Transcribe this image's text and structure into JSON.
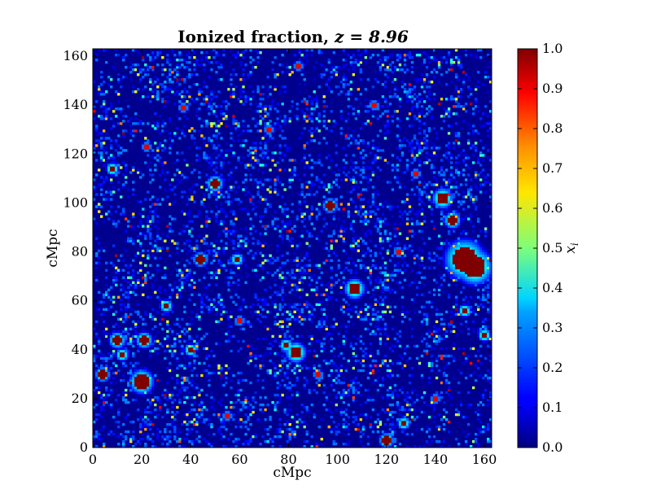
{
  "chart_data": {
    "type": "heatmap",
    "title_prefix": "Ionized fraction, ",
    "title_math": "z = 8.96",
    "redshift": 8.96,
    "xlabel": "cMpc",
    "ylabel": "cMpc",
    "xlim": [
      0,
      163
    ],
    "ylim": [
      0,
      163
    ],
    "xticks": [
      "0",
      "20",
      "40",
      "60",
      "80",
      "100",
      "120",
      "140",
      "160"
    ],
    "yticks": [
      "0",
      "20",
      "40",
      "60",
      "80",
      "100",
      "120",
      "140",
      "160"
    ],
    "colorbar": {
      "label": "x_i",
      "label_base": "x",
      "label_sub": "i",
      "colormap": "jet",
      "range": [
        0.0,
        1.0
      ],
      "ticks": [
        "0.0",
        "0.1",
        "0.2",
        "0.3",
        "0.4",
        "0.5",
        "0.6",
        "0.7",
        "0.8",
        "0.9",
        "1.0"
      ]
    },
    "background_level": 0.0,
    "ionized_bubbles": [
      {
        "x": 152,
        "y": 77,
        "r": 5,
        "xi": 1.0
      },
      {
        "x": 156,
        "y": 74,
        "r": 4.5,
        "xi": 1.0
      },
      {
        "x": 143,
        "y": 102,
        "r": 2.5,
        "xi": 1.0
      },
      {
        "x": 147,
        "y": 93,
        "r": 2,
        "xi": 1.0
      },
      {
        "x": 20,
        "y": 27,
        "r": 3,
        "xi": 1.0
      },
      {
        "x": 21,
        "y": 44,
        "r": 2,
        "xi": 1.0
      },
      {
        "x": 10,
        "y": 44,
        "r": 2,
        "xi": 1.0
      },
      {
        "x": 12,
        "y": 38,
        "r": 1.5,
        "xi": 1.0
      },
      {
        "x": 83,
        "y": 39,
        "r": 2.5,
        "xi": 1.0
      },
      {
        "x": 79,
        "y": 42,
        "r": 1.5,
        "xi": 1.0
      },
      {
        "x": 107,
        "y": 65,
        "r": 2.5,
        "xi": 1.0
      },
      {
        "x": 50,
        "y": 108,
        "r": 2,
        "xi": 1.0
      },
      {
        "x": 97,
        "y": 99,
        "r": 1.8,
        "xi": 1.0
      },
      {
        "x": 8,
        "y": 114,
        "r": 1.5,
        "xi": 1.0
      },
      {
        "x": 44,
        "y": 77,
        "r": 1.8,
        "xi": 1.0
      },
      {
        "x": 59,
        "y": 77,
        "r": 1.5,
        "xi": 1.0
      },
      {
        "x": 4,
        "y": 30,
        "r": 1.8,
        "xi": 1.0
      },
      {
        "x": 40,
        "y": 40,
        "r": 1.5,
        "xi": 1.0
      },
      {
        "x": 30,
        "y": 58,
        "r": 1.5,
        "xi": 1.0
      },
      {
        "x": 120,
        "y": 3,
        "r": 1.8,
        "xi": 1.0
      },
      {
        "x": 127,
        "y": 10,
        "r": 1.5,
        "xi": 1.0
      },
      {
        "x": 152,
        "y": 56,
        "r": 1.5,
        "xi": 1.0
      },
      {
        "x": 160,
        "y": 46,
        "r": 1.5,
        "xi": 1.0
      },
      {
        "x": 132,
        "y": 112,
        "r": 1.2,
        "xi": 0.9
      },
      {
        "x": 37,
        "y": 139,
        "r": 1.2,
        "xi": 0.9
      },
      {
        "x": 84,
        "y": 156,
        "r": 1.2,
        "xi": 0.9
      },
      {
        "x": 60,
        "y": 52,
        "r": 1.2,
        "xi": 0.9
      },
      {
        "x": 125,
        "y": 80,
        "r": 1.2,
        "xi": 0.9
      },
      {
        "x": 92,
        "y": 30,
        "r": 1.2,
        "xi": 0.9
      },
      {
        "x": 140,
        "y": 20,
        "r": 1.2,
        "xi": 0.9
      },
      {
        "x": 55,
        "y": 13,
        "r": 1.2,
        "xi": 0.9
      },
      {
        "x": 22,
        "y": 123,
        "r": 1.2,
        "xi": 0.9
      },
      {
        "x": 72,
        "y": 130,
        "r": 1.2,
        "xi": 0.9
      },
      {
        "x": 115,
        "y": 140,
        "r": 1.2,
        "xi": 0.9
      }
    ]
  }
}
